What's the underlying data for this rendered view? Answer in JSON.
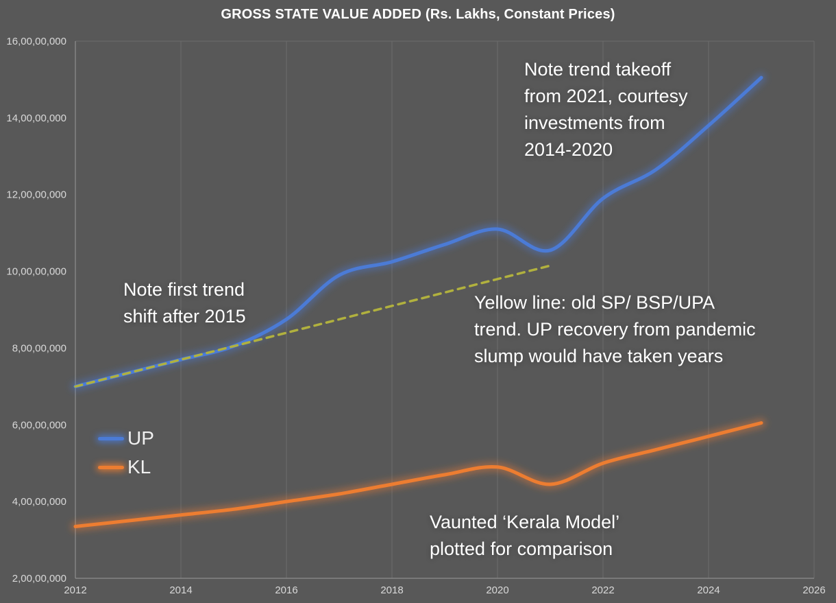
{
  "title": "GROSS STATE VALUE ADDED (Rs. Lakhs, Constant Prices)",
  "colors": {
    "background": "#585858",
    "grid": "#6c6c6c",
    "axis": "#9a9a9a",
    "tick_text": "#d9d9d9",
    "title_text": "#ffffff",
    "annotation_text": "#ffffff",
    "up_blue": "#4b7bd6",
    "kl_orange": "#ED7D31",
    "trend_olive": "#b1b13e"
  },
  "chart_data": {
    "type": "line",
    "title": "GROSS STATE VALUE ADDED (Rs. Lakhs, Constant Prices)",
    "xlabel": "",
    "ylabel": "",
    "grid": "vertical-only",
    "legend_position": "inside-left",
    "x_range": [
      2012,
      2026
    ],
    "y_range": [
      20000000,
      160000000
    ],
    "x_ticks": [
      2012,
      2014,
      2016,
      2018,
      2020,
      2022,
      2024,
      2026
    ],
    "y_ticks": [
      {
        "value": 20000000,
        "label": "2,00,00,000"
      },
      {
        "value": 40000000,
        "label": "4,00,00,000"
      },
      {
        "value": 60000000,
        "label": "6,00,00,000"
      },
      {
        "value": 80000000,
        "label": "8,00,00,000"
      },
      {
        "value": 100000000,
        "label": "10,00,00,000"
      },
      {
        "value": 120000000,
        "label": "12,00,00,000"
      },
      {
        "value": 140000000,
        "label": "14,00,00,000"
      },
      {
        "value": 160000000,
        "label": "16,00,00,000"
      }
    ],
    "years": [
      2012,
      2013,
      2014,
      2015,
      2016,
      2017,
      2018,
      2019,
      2020,
      2021,
      2022,
      2023,
      2024,
      2025
    ],
    "series": [
      {
        "name": "UP",
        "color": "#4b7bd6",
        "style": "solid",
        "glow": true,
        "values": [
          70000000,
          73500000,
          77000000,
          80500000,
          87500000,
          99000000,
          102500000,
          107000000,
          111000000,
          105500000,
          119000000,
          126500000,
          138000000,
          150500000
        ]
      },
      {
        "name": "KL",
        "color": "#ED7D31",
        "style": "solid",
        "glow": true,
        "values": [
          33500000,
          35000000,
          36500000,
          38000000,
          40000000,
          42000000,
          44500000,
          47000000,
          49000000,
          44500000,
          50000000,
          53500000,
          57000000,
          60500000
        ]
      },
      {
        "name": "old-trend",
        "color": "#b1b13e",
        "style": "dashed",
        "glow": false,
        "x": [
          2012,
          2021
        ],
        "values": [
          70000000,
          101500000
        ]
      }
    ]
  },
  "annotations": {
    "takeoff": "Note trend takeoff\nfrom 2021, courtesy\ninvestments from\n2014-2020",
    "first_shift": "Note first trend\nshift after 2015",
    "yellow_line": "Yellow line: old SP/ BSP/UPA\ntrend. UP recovery from pandemic\nslump would have taken years",
    "kerala": "Vaunted ‘Kerala Model’\nplotted for comparison"
  }
}
